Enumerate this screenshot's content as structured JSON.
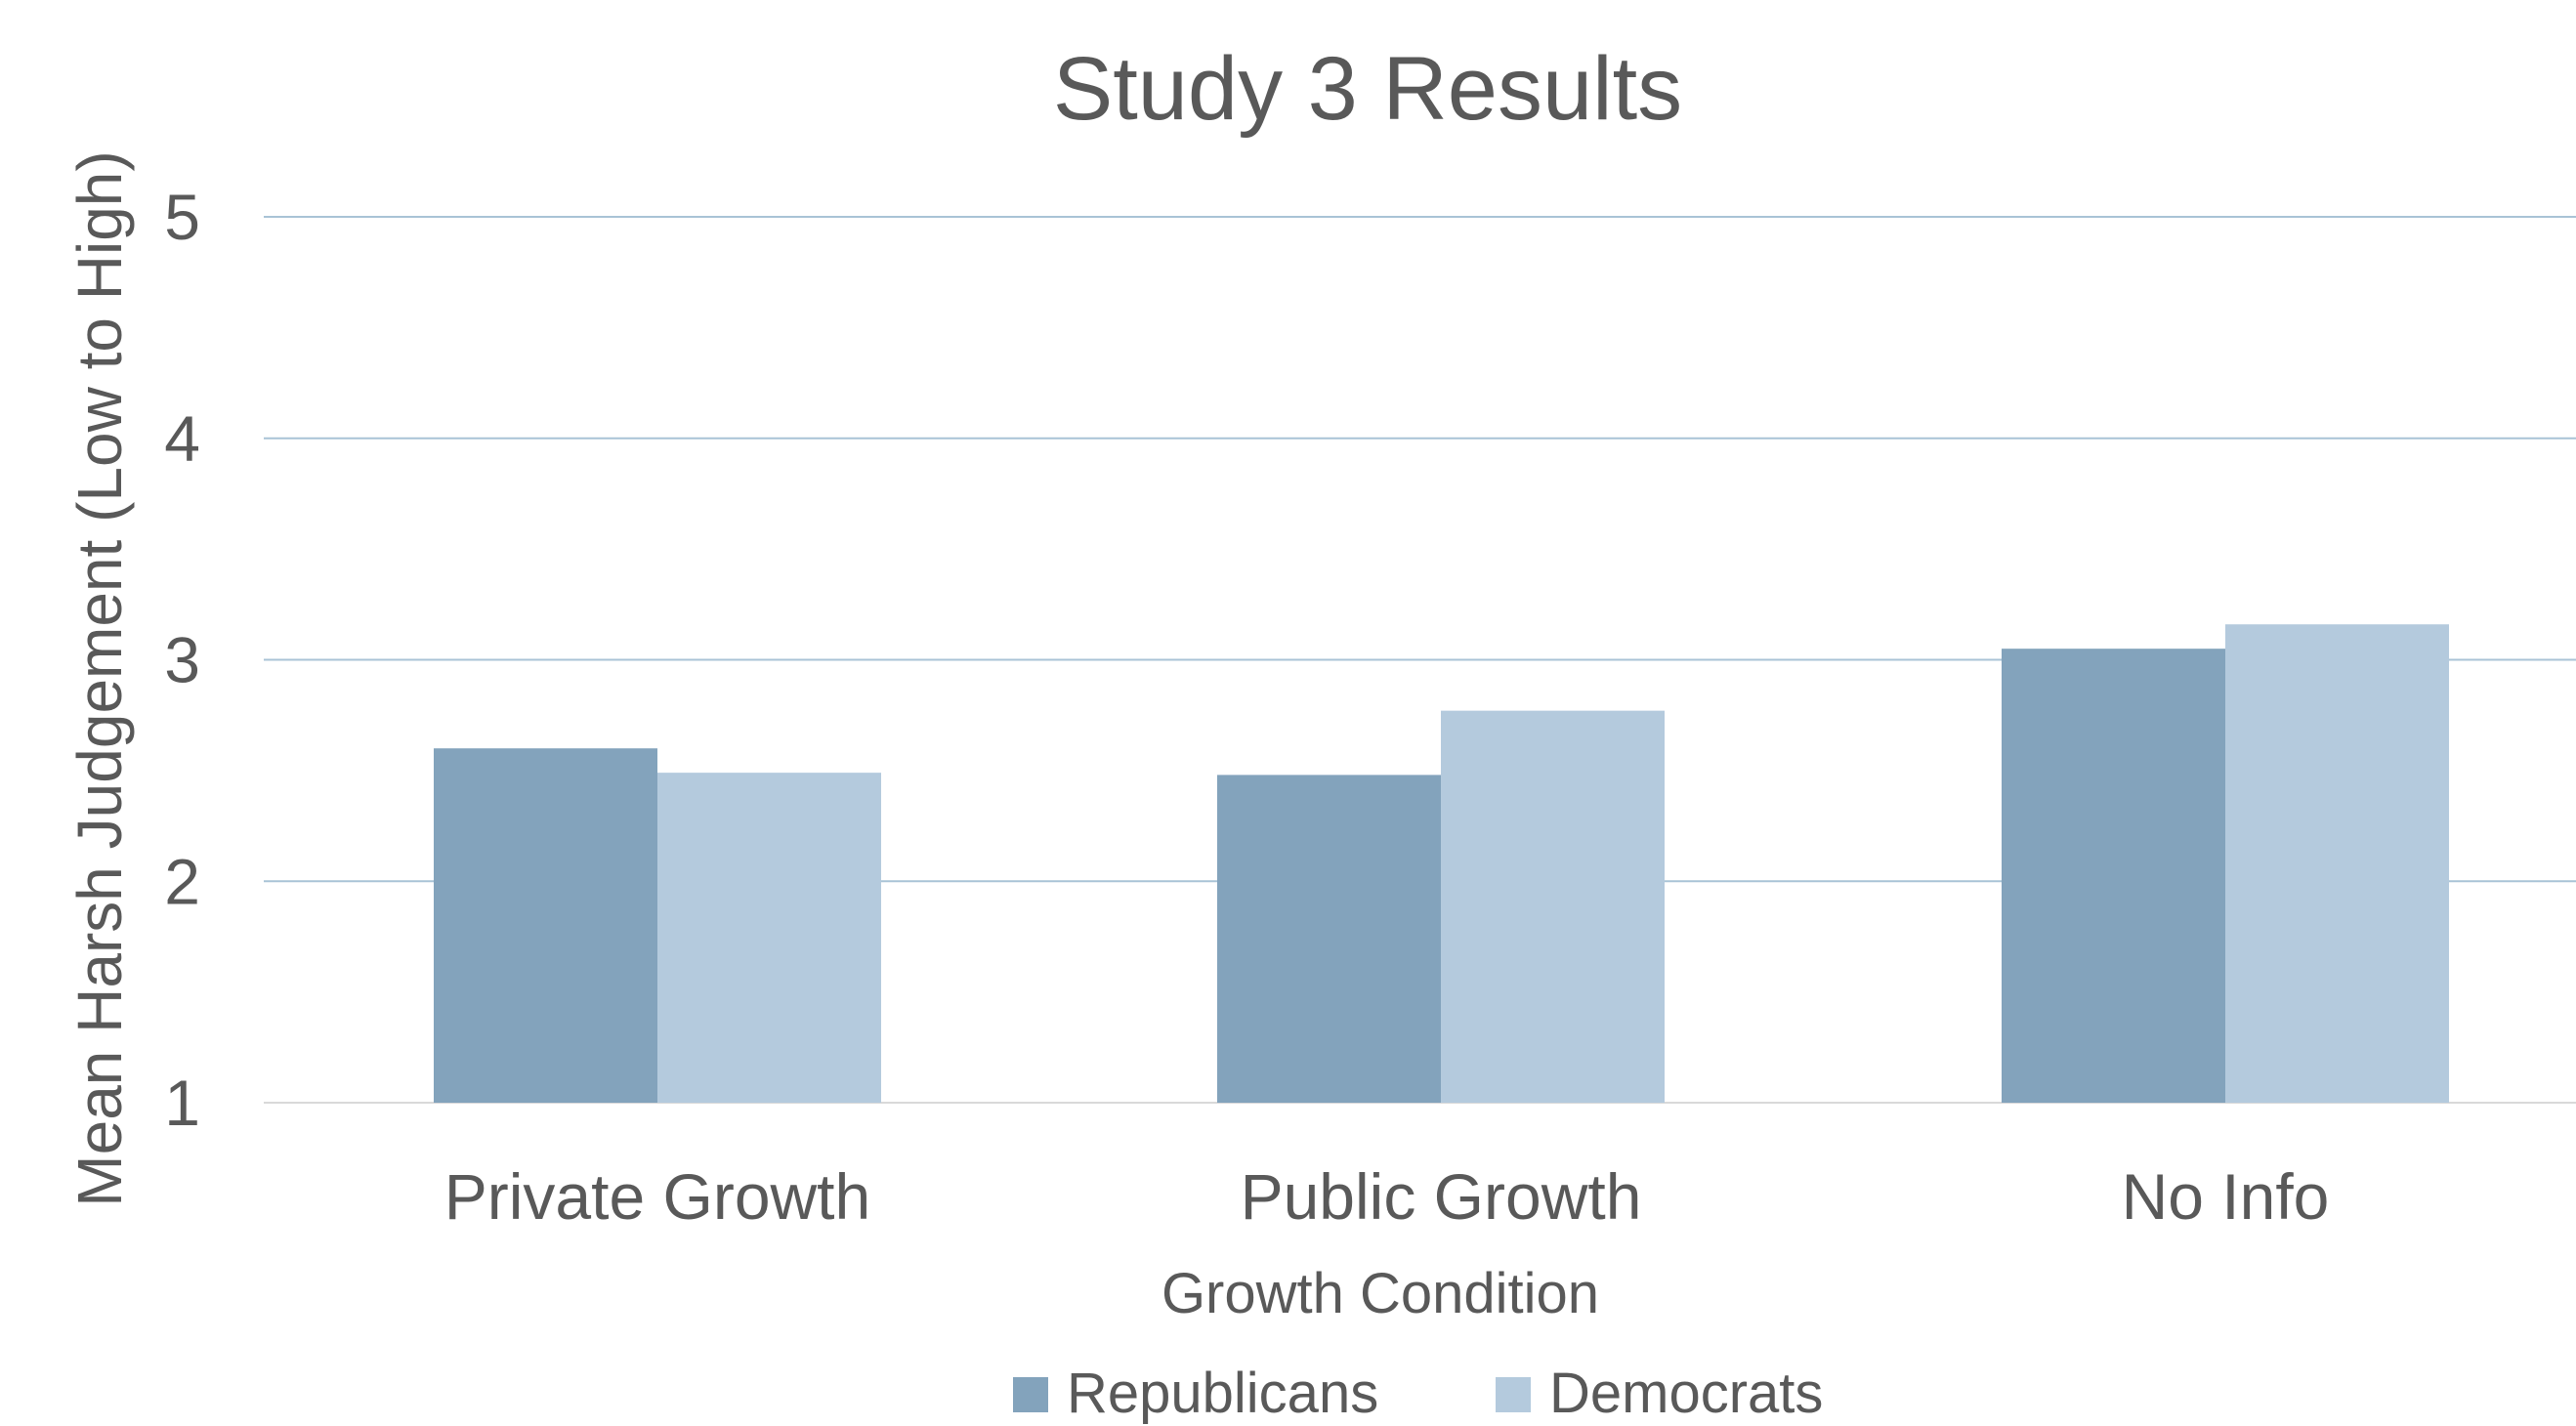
{
  "chart_data": {
    "type": "bar",
    "title": "Study 3 Results",
    "xlabel": "Growth Condition",
    "ylabel": "Mean Harsh Judgement (Low to High)",
    "categories": [
      "Private Growth",
      "Public Growth",
      "No Info"
    ],
    "series": [
      {
        "name": "Republicans",
        "color": "#83a3bc",
        "values": [
          2.6,
          2.48,
          3.05
        ]
      },
      {
        "name": "Democrats",
        "color": "#b4cadd",
        "values": [
          2.49,
          2.77,
          3.16
        ]
      }
    ],
    "ylim": [
      1,
      5
    ],
    "yticks": [
      "1",
      "2",
      "3",
      "4",
      "5"
    ],
    "grid": true,
    "legend_position": "bottom"
  }
}
